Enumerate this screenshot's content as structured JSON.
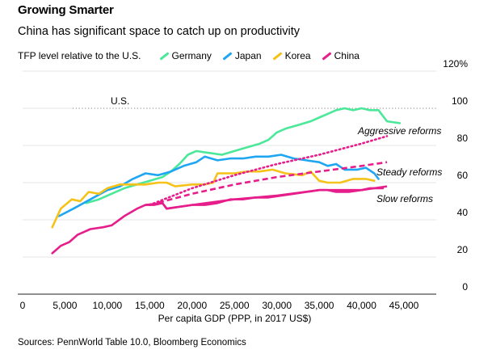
{
  "title": "Growing Smarter",
  "subtitle": "China has significant space to catch up on productivity",
  "legend": {
    "label": "TFP level relative to the U.S.",
    "items": [
      {
        "name": "Germany",
        "color": "#4be89a"
      },
      {
        "name": "Japan",
        "color": "#1fa6f2"
      },
      {
        "name": "Korea",
        "color": "#f5c21a"
      },
      {
        "name": "China",
        "color": "#e61e8c"
      }
    ]
  },
  "source": "Sources: PennWorld Table 10.0, Bloomberg Economics",
  "chart_data": {
    "type": "line",
    "title": "Growing Smarter",
    "xlabel": "Per capita GDP (PPP, in 2017 US$)",
    "ylabel": "TFP level relative to the U.S.",
    "xlim": [
      0,
      45000
    ],
    "ylim": [
      0,
      120
    ],
    "x_ticks": [
      "0",
      "5,000",
      "10,000",
      "15,000",
      "20,000",
      "25,000",
      "30,000",
      "35,000",
      "40,000",
      "45,000"
    ],
    "x_tick_values": [
      0,
      5000,
      10000,
      15000,
      20000,
      25000,
      30000,
      35000,
      40000,
      45000
    ],
    "y_ticks": [
      "0",
      "20",
      "40",
      "60",
      "80",
      "100",
      "120%"
    ],
    "y_tick_values": [
      0,
      20,
      40,
      60,
      80,
      100,
      120
    ],
    "grid": "horizontal",
    "reference": {
      "label": "U.S.",
      "y": 100
    },
    "series": [
      {
        "name": "Germany",
        "color": "#4be89a",
        "points": [
          [
            7500,
            49
          ],
          [
            9000,
            51
          ],
          [
            10500,
            54
          ],
          [
            12000,
            57
          ],
          [
            13500,
            59
          ],
          [
            15000,
            61
          ],
          [
            16500,
            63
          ],
          [
            17500,
            66
          ],
          [
            18500,
            70
          ],
          [
            19500,
            75
          ],
          [
            20500,
            77
          ],
          [
            22000,
            76
          ],
          [
            23500,
            75
          ],
          [
            25000,
            77
          ],
          [
            26500,
            79
          ],
          [
            28000,
            81
          ],
          [
            29000,
            83
          ],
          [
            30000,
            87
          ],
          [
            31000,
            89
          ],
          [
            32500,
            91
          ],
          [
            34000,
            93
          ],
          [
            35000,
            95
          ],
          [
            36000,
            97
          ],
          [
            37000,
            99
          ],
          [
            38000,
            100
          ],
          [
            39000,
            99
          ],
          [
            40000,
            100
          ],
          [
            41000,
            99
          ],
          [
            42000,
            99
          ],
          [
            43000,
            93
          ],
          [
            44500,
            92
          ]
        ]
      },
      {
        "name": "Japan",
        "color": "#1fa6f2",
        "points": [
          [
            4300,
            42
          ],
          [
            6000,
            46
          ],
          [
            8000,
            51
          ],
          [
            10000,
            56
          ],
          [
            11500,
            58
          ],
          [
            13000,
            62
          ],
          [
            14500,
            65
          ],
          [
            16000,
            64
          ],
          [
            17500,
            66
          ],
          [
            19000,
            69
          ],
          [
            20500,
            71
          ],
          [
            21500,
            74
          ],
          [
            23000,
            72
          ],
          [
            24500,
            73
          ],
          [
            26000,
            73
          ],
          [
            27500,
            74
          ],
          [
            29000,
            74
          ],
          [
            30500,
            75
          ],
          [
            32000,
            73
          ],
          [
            33500,
            72
          ],
          [
            35000,
            71
          ],
          [
            36000,
            69
          ],
          [
            37000,
            70
          ],
          [
            38000,
            67
          ],
          [
            39500,
            67
          ],
          [
            40500,
            68
          ],
          [
            41500,
            65
          ],
          [
            42000,
            62
          ]
        ]
      },
      {
        "name": "Korea",
        "color": "#f5c21a",
        "points": [
          [
            3500,
            36
          ],
          [
            4500,
            46
          ],
          [
            5800,
            51
          ],
          [
            6800,
            50
          ],
          [
            7800,
            55
          ],
          [
            9000,
            54
          ],
          [
            10000,
            57
          ],
          [
            11500,
            59
          ],
          [
            13000,
            59
          ],
          [
            14500,
            59
          ],
          [
            16000,
            60
          ],
          [
            17000,
            60
          ],
          [
            18000,
            58
          ],
          [
            20000,
            59
          ],
          [
            21500,
            59
          ],
          [
            22500,
            60
          ],
          [
            23000,
            65
          ],
          [
            25000,
            65
          ],
          [
            26500,
            66
          ],
          [
            28000,
            66
          ],
          [
            29500,
            67
          ],
          [
            31000,
            65
          ],
          [
            33000,
            64
          ],
          [
            34000,
            66
          ],
          [
            35000,
            61
          ],
          [
            36000,
            60
          ],
          [
            37500,
            60
          ],
          [
            39000,
            62
          ],
          [
            40500,
            62
          ],
          [
            41500,
            61
          ]
        ]
      },
      {
        "name": "China",
        "color": "#e61e8c",
        "points": [
          [
            3500,
            22
          ],
          [
            4500,
            26
          ],
          [
            5500,
            28
          ],
          [
            6500,
            32
          ],
          [
            8000,
            35
          ],
          [
            9500,
            36
          ],
          [
            10500,
            37
          ],
          [
            12000,
            42
          ],
          [
            13500,
            46
          ],
          [
            14500,
            48
          ],
          [
            15500,
            48
          ],
          [
            16500,
            49
          ],
          [
            17000,
            46
          ],
          [
            18500,
            47
          ],
          [
            20000,
            48
          ],
          [
            21500,
            48
          ],
          [
            23000,
            49
          ],
          [
            24500,
            51
          ],
          [
            26000,
            51
          ],
          [
            27500,
            52
          ],
          [
            29000,
            52
          ],
          [
            30500,
            53
          ],
          [
            32000,
            54
          ],
          [
            33500,
            55
          ],
          [
            35000,
            56
          ],
          [
            36000,
            56
          ],
          [
            37000,
            55
          ],
          [
            38500,
            55
          ],
          [
            40000,
            56
          ],
          [
            41000,
            57
          ],
          [
            42500,
            57
          ]
        ]
      }
    ],
    "scenarios": [
      {
        "name": "Aggressive reforms",
        "style": "dotted",
        "points": [
          [
            15000,
            48
          ],
          [
            20000,
            57
          ],
          [
            25000,
            64
          ],
          [
            30000,
            70
          ],
          [
            35000,
            75
          ],
          [
            40000,
            81
          ],
          [
            43000,
            85
          ]
        ]
      },
      {
        "name": "Steady reforms",
        "style": "dashed",
        "points": [
          [
            15000,
            48
          ],
          [
            20000,
            54
          ],
          [
            25000,
            59
          ],
          [
            30000,
            63
          ],
          [
            35000,
            66
          ],
          [
            40000,
            69
          ],
          [
            43000,
            71
          ]
        ]
      },
      {
        "name": "Slow reforms",
        "style": "solid",
        "points": [
          [
            14500,
            48
          ],
          [
            16500,
            49
          ],
          [
            17000,
            46
          ],
          [
            20000,
            48
          ],
          [
            25000,
            51
          ],
          [
            30000,
            53
          ],
          [
            35000,
            56
          ],
          [
            40000,
            56
          ],
          [
            43000,
            58
          ]
        ]
      }
    ]
  }
}
